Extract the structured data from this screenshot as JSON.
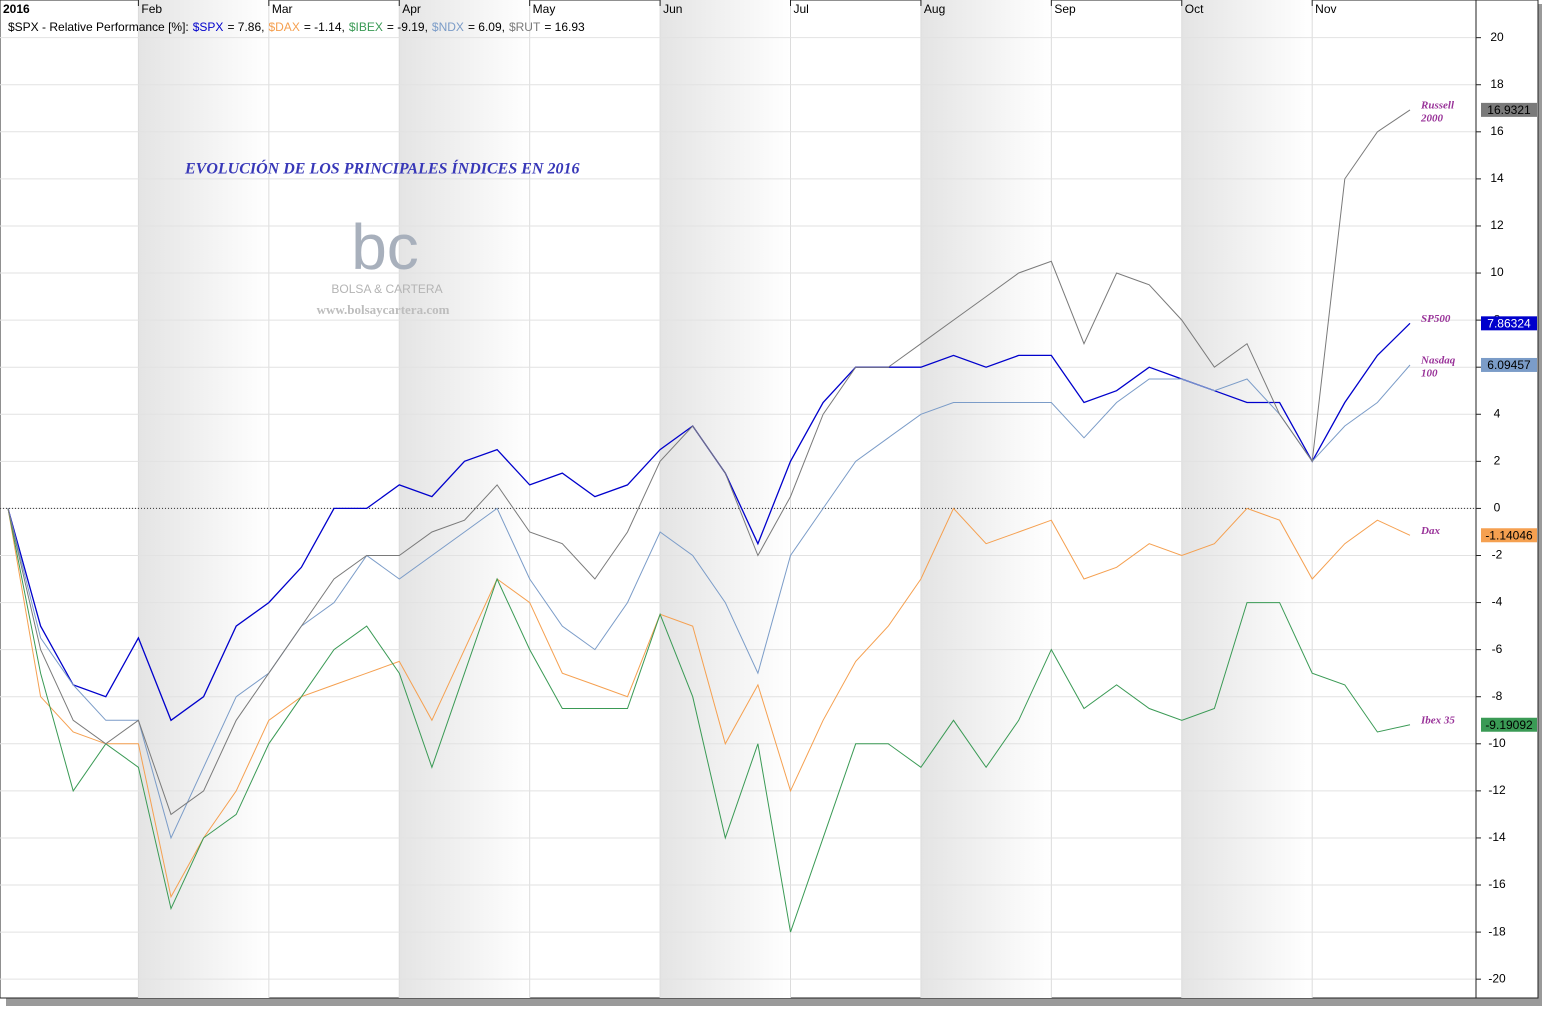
{
  "chart_data": {
    "type": "line",
    "title": "EVOLUCIÓN DE LOS PRINCIPALES ÍNDICES EN 2016",
    "header_title": "$SPX - Relative Performance [%]:",
    "watermark": {
      "logo": "bc",
      "brand": "BOLSA & CARTERA",
      "url": "www.bolsaycartera.com"
    },
    "categories": [
      "2016",
      null,
      null,
      null,
      "Feb",
      null,
      null,
      null,
      "Mar",
      null,
      null,
      null,
      "Apr",
      null,
      null,
      null,
      "May",
      null,
      null,
      null,
      "Jun",
      null,
      null,
      null,
      "Jul",
      null,
      null,
      null,
      "Aug",
      null,
      null,
      null,
      "Sep",
      null,
      null,
      null,
      "Oct",
      null,
      null,
      null,
      "Nov",
      null,
      null,
      null
    ],
    "ylim": [
      -20.8,
      21.6
    ],
    "yticks": [
      -20,
      -18,
      -16,
      -14,
      -12,
      -10,
      -8,
      -6,
      -4,
      -2,
      0,
      2,
      4,
      6,
      8,
      10,
      12,
      14,
      16,
      18,
      20
    ],
    "grid": true,
    "series": [
      {
        "name": "$SPX",
        "summary_label": "= 7.86,",
        "label_lines": [
          "SP500"
        ],
        "color": "#0000cc",
        "tag_text_color": "#ffffff",
        "values": [
          0,
          -5,
          -7.5,
          -8,
          -5.5,
          -9,
          -8,
          -5,
          -4,
          -2.5,
          0,
          0,
          1,
          0.5,
          2,
          2.5,
          1,
          1.5,
          0.5,
          1,
          2.5,
          3.5,
          1.5,
          -1.5,
          2,
          4.5,
          6,
          6,
          6,
          6.5,
          6,
          6.5,
          6.5,
          4.5,
          5,
          6,
          5.5,
          5,
          4.5,
          4.5,
          2,
          4.5,
          6.5,
          7.86324
        ]
      },
      {
        "name": "$DAX",
        "summary_label": "= -1.14,",
        "label_lines": [
          "Dax"
        ],
        "color": "#f5a050",
        "tag_text_color": "#000000",
        "values": [
          0,
          -8,
          -9.5,
          -10,
          -10,
          -16.5,
          -14,
          -12,
          -9,
          -8,
          -7.5,
          -7,
          -6.5,
          -9,
          -6,
          -3,
          -4,
          -7,
          -7.5,
          -8,
          -4.5,
          -5,
          -10,
          -7.5,
          -12,
          -9,
          -6.5,
          -5,
          -3,
          0,
          -1.5,
          -1,
          -0.5,
          -3,
          -2.5,
          -1.5,
          -2,
          -1.5,
          0,
          -0.5,
          -3,
          -1.5,
          -0.5,
          -1.14046
        ]
      },
      {
        "name": "$IBEX",
        "summary_label": "= -9.19,",
        "label_lines": [
          "Ibex 35"
        ],
        "color": "#3a9a55",
        "tag_text_color": "#000000",
        "values": [
          0,
          -7,
          -12,
          -10,
          -11,
          -17,
          -14,
          -13,
          -10,
          -8,
          -6,
          -5,
          -7,
          -11,
          -7,
          -3,
          -6,
          -8.5,
          -8.5,
          -8.5,
          -4.5,
          -8,
          -14,
          -10,
          -18,
          -14,
          -10,
          -10,
          -11,
          -9,
          -11,
          -9,
          -6,
          -8.5,
          -7.5,
          -8.5,
          -9,
          -8.5,
          -4,
          -4,
          -7,
          -7.5,
          -9.5,
          -9.19092
        ]
      },
      {
        "name": "$NDX",
        "summary_label": "= 6.09,",
        "label_lines": [
          "Nasdaq",
          "100"
        ],
        "color": "#7b9cc8",
        "tag_text_color": "#000000",
        "values": [
          0,
          -5.5,
          -7.5,
          -9,
          -9,
          -14,
          -11,
          -8,
          -7,
          -5,
          -4,
          -2,
          -3,
          -2,
          -1,
          0,
          -3,
          -5,
          -6,
          -4,
          -1,
          -2,
          -4,
          -7,
          -2,
          0,
          2,
          3,
          4,
          4.5,
          4.5,
          4.5,
          4.5,
          3,
          4.5,
          5.5,
          5.5,
          5,
          5.5,
          4,
          2,
          3.5,
          4.5,
          6.09457
        ]
      },
      {
        "name": "$RUT",
        "summary_label": "= 16.93",
        "label_lines": [
          "Russell",
          "2000"
        ],
        "color": "#7a7a7a",
        "tag_text_color": "#000000",
        "values": [
          0,
          -6,
          -9,
          -10,
          -9,
          -13,
          -12,
          -9,
          -7,
          -5,
          -3,
          -2,
          -2,
          -1,
          -0.5,
          1,
          -1,
          -1.5,
          -3,
          -1,
          2,
          3.5,
          1.5,
          -2,
          0.5,
          4,
          6,
          6,
          7,
          8,
          9,
          10,
          10.5,
          7,
          10,
          9.5,
          8,
          6,
          7,
          4,
          2,
          14,
          16,
          16.9321
        ]
      }
    ]
  }
}
